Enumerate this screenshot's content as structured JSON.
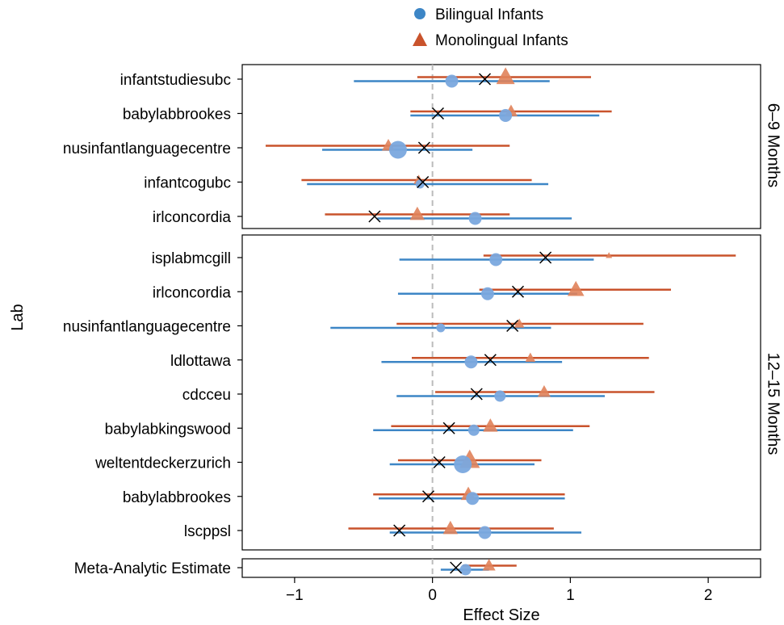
{
  "chart_data": {
    "type": "forest",
    "xlabel": "Effect Size",
    "ylabel": "Lab",
    "xlim": [
      -1.38,
      2.38
    ],
    "xticks": [
      -1,
      0,
      1,
      2
    ],
    "xtick_labels": [
      "−1",
      "0",
      "1",
      "2"
    ],
    "reference_line_x": 0,
    "legend": {
      "position": "top",
      "items": [
        {
          "label": "Bilingual Infants",
          "marker": "circle",
          "color": "#3d86c6"
        },
        {
          "label": "Monolingual Infants",
          "marker": "triangle",
          "color": "#c9532c"
        }
      ]
    },
    "colors": {
      "bilingual": "#3d86c6",
      "bilingual_fill": "#7aa8de",
      "monolingual": "#c9532c",
      "monolingual_fill": "#e0825a",
      "combined_marker": "#000000",
      "reference": "#bbbbbb"
    },
    "panels": [
      {
        "strip_label": "6–9 Months",
        "labs": [
          {
            "name": "infantstudiesubc",
            "bil": {
              "est": 0.14,
              "lo": -0.57,
              "hi": 0.85,
              "size": 3
            },
            "mono": {
              "est": 0.53,
              "lo": -0.11,
              "hi": 1.15,
              "size": 5
            },
            "combined": 0.38
          },
          {
            "name": "babylabbrookes",
            "bil": {
              "est": 0.53,
              "lo": -0.16,
              "hi": 1.21,
              "size": 3
            },
            "mono": {
              "est": 0.57,
              "lo": -0.16,
              "hi": 1.3,
              "size": 2
            },
            "combined": 0.04
          },
          {
            "name": "nusinfantlanguagecentre",
            "bil": {
              "est": -0.25,
              "lo": -0.8,
              "hi": 0.29,
              "size": 6
            },
            "mono": {
              "est": -0.32,
              "lo": -1.21,
              "hi": 0.56,
              "size": 2
            },
            "combined": -0.06
          },
          {
            "name": "infantcogubc",
            "bil": {
              "est": -0.09,
              "lo": -0.91,
              "hi": 0.84,
              "size": 1
            },
            "mono": {
              "est": -0.1,
              "lo": -0.95,
              "hi": 0.72,
              "size": 1
            },
            "combined": -0.07
          },
          {
            "name": "irlconcordia",
            "bil": {
              "est": 0.31,
              "lo": -0.4,
              "hi": 1.01,
              "size": 3
            },
            "mono": {
              "est": -0.11,
              "lo": -0.78,
              "hi": 0.56,
              "size": 3
            },
            "combined": -0.42
          }
        ]
      },
      {
        "strip_label": "12–15 Months",
        "labs": [
          {
            "name": "isplabmcgill",
            "bil": {
              "est": 0.46,
              "lo": -0.24,
              "hi": 1.17,
              "size": 3
            },
            "mono": {
              "est": 1.28,
              "lo": 0.37,
              "hi": 2.2,
              "size": 0
            },
            "combined": 0.82
          },
          {
            "name": "irlconcordia",
            "bil": {
              "est": 0.4,
              "lo": -0.25,
              "hi": 1.05,
              "size": 3
            },
            "mono": {
              "est": 1.04,
              "lo": 0.34,
              "hi": 1.73,
              "size": 4
            },
            "combined": 0.62
          },
          {
            "name": "nusinfantlanguagecentre",
            "bil": {
              "est": 0.06,
              "lo": -0.74,
              "hi": 0.86,
              "size": 1
            },
            "mono": {
              "est": 0.63,
              "lo": -0.26,
              "hi": 1.53,
              "size": 1
            },
            "combined": 0.58
          },
          {
            "name": "ldlottawa",
            "bil": {
              "est": 0.28,
              "lo": -0.37,
              "hi": 0.94,
              "size": 3
            },
            "mono": {
              "est": 0.71,
              "lo": -0.15,
              "hi": 1.57,
              "size": 1
            },
            "combined": 0.42
          },
          {
            "name": "cdcceu",
            "bil": {
              "est": 0.49,
              "lo": -0.26,
              "hi": 1.25,
              "size": 2
            },
            "mono": {
              "est": 0.81,
              "lo": 0.02,
              "hi": 1.61,
              "size": 2
            },
            "combined": 0.32
          },
          {
            "name": "babylabkingswood",
            "bil": {
              "est": 0.3,
              "lo": -0.43,
              "hi": 1.02,
              "size": 2
            },
            "mono": {
              "est": 0.42,
              "lo": -0.3,
              "hi": 1.14,
              "size": 3
            },
            "combined": 0.12
          },
          {
            "name": "weltentdeckerzurich",
            "bil": {
              "est": 0.22,
              "lo": -0.31,
              "hi": 0.74,
              "size": 6
            },
            "mono": {
              "est": 0.27,
              "lo": -0.25,
              "hi": 0.79,
              "size": 6
            },
            "combined": 0.05
          },
          {
            "name": "babylabbrookes",
            "bil": {
              "est": 0.29,
              "lo": -0.39,
              "hi": 0.96,
              "size": 3
            },
            "mono": {
              "est": 0.26,
              "lo": -0.43,
              "hi": 0.96,
              "size": 3
            },
            "combined": -0.03
          },
          {
            "name": "lscppsl",
            "bil": {
              "est": 0.38,
              "lo": -0.31,
              "hi": 1.08,
              "size": 3
            },
            "mono": {
              "est": 0.13,
              "lo": -0.61,
              "hi": 0.88,
              "size": 3
            },
            "combined": -0.24
          }
        ]
      },
      {
        "strip_label": "",
        "labs": [
          {
            "name": "Meta-Analytic Estimate",
            "bil": {
              "est": 0.24,
              "lo": 0.06,
              "hi": 0.41,
              "size": 2
            },
            "mono": {
              "est": 0.41,
              "lo": 0.22,
              "hi": 0.61,
              "size": 2
            },
            "combined": 0.17
          }
        ]
      }
    ]
  }
}
